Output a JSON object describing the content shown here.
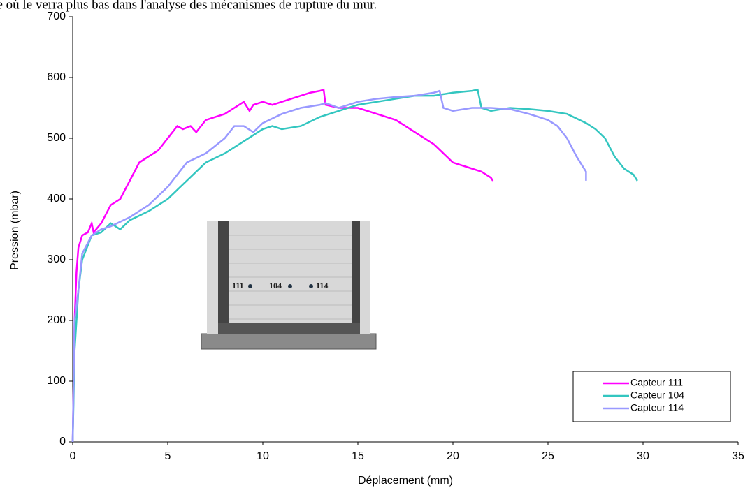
{
  "chart_data": {
    "type": "line",
    "annotations": [
      "ne où le verra plus bas dans l'analyse des mécanismes de rupture du mur."
    ],
    "inset_labels": [
      "111",
      "104",
      "114"
    ],
    "x_label": "Déplacement (mm)",
    "y_label": "Pression (mbar)",
    "xlim": [
      0,
      35
    ],
    "xticks": [
      0,
      5,
      10,
      15,
      20,
      25,
      30,
      35
    ],
    "ylim": [
      0,
      700
    ],
    "yticks": [
      0,
      100,
      200,
      300,
      400,
      500,
      600,
      700
    ],
    "legend": "bottom-right",
    "series": [
      {
        "name": "Capteur 111",
        "color": "#ff00ff",
        "x": [
          0,
          0.05,
          0.1,
          0.2,
          0.3,
          0.5,
          0.8,
          1.0,
          1.1,
          1.5,
          2,
          2.5,
          3,
          3.5,
          4,
          4.5,
          5,
          5.5,
          5.8,
          6.2,
          6.5,
          7,
          7.5,
          8,
          8.5,
          9,
          9.3,
          9.5,
          10,
          10.5,
          11,
          11.5,
          12,
          12.5,
          13,
          13.2,
          13.3,
          14,
          15,
          16,
          17,
          18,
          19,
          20,
          21,
          21.5,
          22,
          22.1
        ],
        "values": [
          0,
          100,
          200,
          280,
          320,
          340,
          345,
          360,
          345,
          360,
          390,
          400,
          430,
          460,
          470,
          480,
          500,
          520,
          515,
          520,
          510,
          530,
          535,
          540,
          550,
          560,
          545,
          555,
          560,
          555,
          560,
          565,
          570,
          575,
          578,
          580,
          555,
          550,
          550,
          540,
          530,
          510,
          490,
          460,
          450,
          445,
          435,
          430
        ]
      },
      {
        "name": "Capteur 104",
        "color": "#33c6c0",
        "x": [
          0,
          0.1,
          0.3,
          0.5,
          1,
          1.5,
          2,
          2.5,
          3,
          4,
          5,
          6,
          7,
          8,
          9,
          10,
          10.5,
          11,
          12,
          13,
          14,
          15,
          16,
          17,
          18,
          19,
          20,
          21,
          21.3,
          21.5,
          22,
          23,
          24,
          25,
          26,
          27,
          27.5,
          28,
          28.5,
          29,
          29.5,
          29.7
        ],
        "values": [
          0,
          150,
          250,
          300,
          340,
          345,
          360,
          350,
          365,
          380,
          400,
          430,
          460,
          475,
          495,
          515,
          520,
          515,
          520,
          535,
          545,
          555,
          560,
          565,
          570,
          570,
          575,
          578,
          580,
          550,
          545,
          550,
          548,
          545,
          540,
          525,
          515,
          500,
          470,
          450,
          440,
          430
        ]
      },
      {
        "name": "Capteur 114",
        "color": "#9999ff",
        "x": [
          0,
          0.1,
          0.3,
          0.5,
          1,
          1.5,
          2,
          3,
          4,
          5,
          6,
          7,
          8,
          8.5,
          9,
          9.5,
          10,
          11,
          12,
          13,
          13.3,
          14,
          15,
          16,
          17,
          18,
          19,
          19.3,
          19.5,
          20,
          21,
          22,
          23,
          24,
          25,
          25.5,
          26,
          26.5,
          26.8,
          27,
          27
        ],
        "values": [
          0,
          200,
          250,
          310,
          340,
          350,
          355,
          370,
          390,
          420,
          460,
          475,
          500,
          520,
          520,
          510,
          525,
          540,
          550,
          555,
          558,
          550,
          560,
          565,
          568,
          570,
          575,
          578,
          550,
          545,
          550,
          550,
          548,
          540,
          530,
          520,
          500,
          470,
          455,
          445,
          430
        ]
      }
    ]
  }
}
